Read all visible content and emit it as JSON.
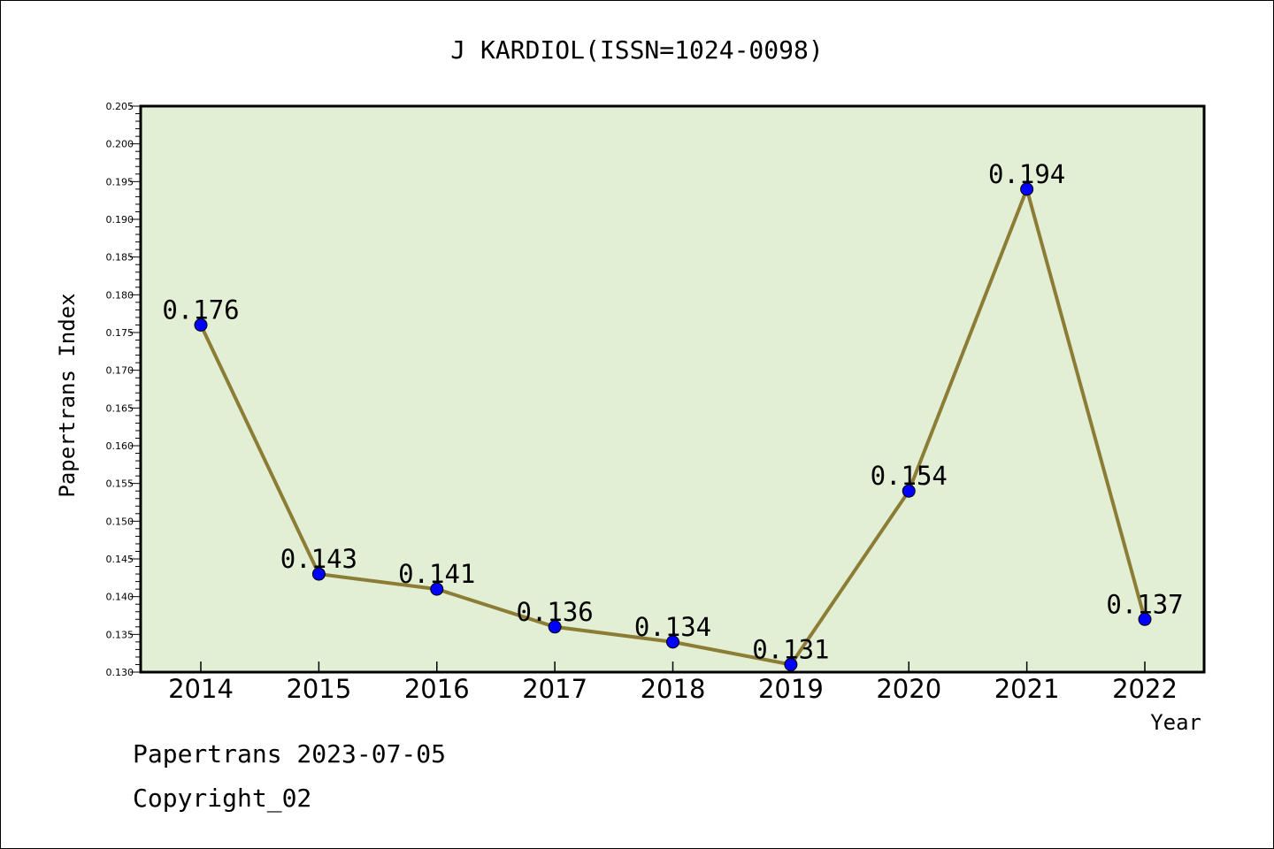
{
  "chart_data": {
    "type": "line",
    "title": "J KARDIOL(ISSN=1024-0098)",
    "xlabel": "Year",
    "ylabel": "Papertrans Index",
    "categories": [
      "2014",
      "2015",
      "2016",
      "2017",
      "2018",
      "2019",
      "2020",
      "2021",
      "2022"
    ],
    "series": [
      {
        "values": [
          0.176,
          0.143,
          0.141,
          0.136,
          0.134,
          0.131,
          0.154,
          0.194,
          0.137
        ],
        "labels": [
          "0.176",
          "0.143",
          "0.141",
          "0.136",
          "0.134",
          "0.131",
          "0.154",
          "0.194",
          "0.137"
        ],
        "line_color": "#8b7d35",
        "marker_color": "#0000ff"
      }
    ],
    "ylim": [
      0.13,
      0.205
    ],
    "yticks": [
      "0.130",
      "0.135",
      "0.140",
      "0.145",
      "0.150",
      "0.155",
      "0.160",
      "0.165",
      "0.170",
      "0.175",
      "0.180",
      "0.185",
      "0.190",
      "0.195",
      "0.200",
      "0.205"
    ],
    "plot_background": "#e2efd5",
    "grid": false,
    "legend": "none"
  },
  "footer": {
    "line1": "Papertrans 2023-07-05",
    "line2": "Copyright_02"
  }
}
